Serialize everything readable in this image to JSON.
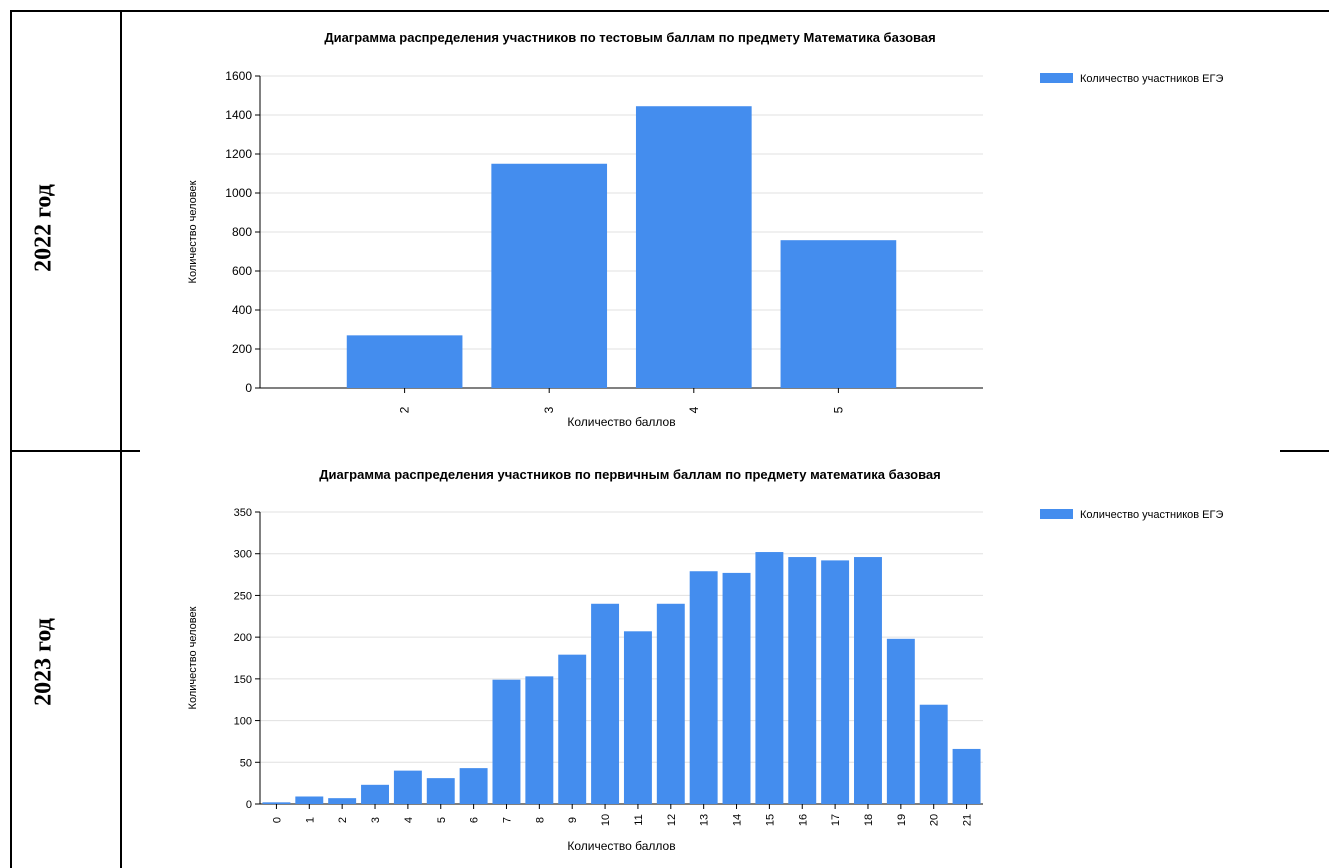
{
  "rows": [
    {
      "year_label": "2022 год"
    },
    {
      "year_label": "2023 год"
    }
  ],
  "colors": {
    "bar": "#448DEE",
    "grid": "#E0E0E0",
    "axis": "#000000"
  },
  "chart_data": [
    {
      "type": "bar",
      "title": "Диаграмма распределения участников по тестовым баллам по предмету Математика базовая",
      "xlabel": "Количество баллов",
      "ylabel": "Количество человек",
      "categories": [
        "2",
        "3",
        "4",
        "5"
      ],
      "series": [
        {
          "name": "Количество участников ЕГЭ",
          "values": [
            270,
            1150,
            1445,
            758
          ]
        }
      ],
      "ylim": [
        0,
        1600
      ],
      "yticks": [
        0,
        200,
        400,
        600,
        800,
        1000,
        1200,
        1400,
        1600
      ],
      "grid": true,
      "legend": "top-right"
    },
    {
      "type": "bar",
      "title": "Диаграмма распределения участников по первичным баллам по предмету математика базовая",
      "xlabel": "Количество баллов",
      "ylabel": "Количество человек",
      "categories": [
        "0",
        "1",
        "2",
        "3",
        "4",
        "5",
        "6",
        "7",
        "8",
        "9",
        "10",
        "11",
        "12",
        "13",
        "14",
        "15",
        "16",
        "17",
        "18",
        "19",
        "20",
        "21"
      ],
      "series": [
        {
          "name": "Количество участников ЕГЭ",
          "values": [
            2,
            9,
            7,
            23,
            40,
            31,
            43,
            149,
            153,
            179,
            240,
            207,
            240,
            279,
            277,
            302,
            296,
            292,
            296,
            198,
            119,
            66
          ]
        }
      ],
      "ylim": [
        0,
        350
      ],
      "yticks": [
        0,
        50,
        100,
        150,
        200,
        250,
        300,
        350
      ],
      "grid": true,
      "legend": "top-right"
    }
  ]
}
